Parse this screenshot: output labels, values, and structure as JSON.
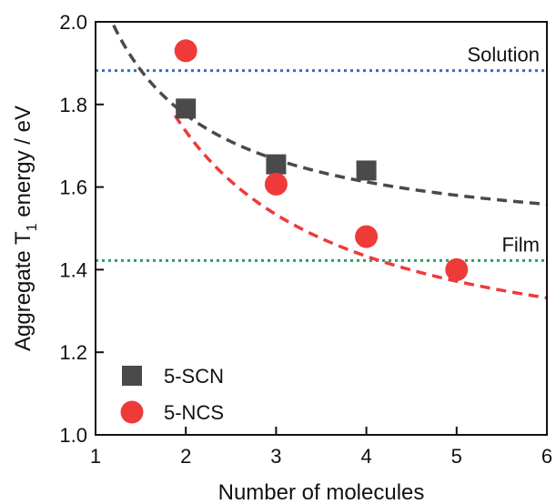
{
  "chart_data": {
    "type": "scatter",
    "xlabel": "Number of molecules",
    "ylabel_parts": {
      "before": "Aggregate T",
      "subscript": "1",
      "after": " energy / eV"
    },
    "xlim": [
      1,
      6
    ],
    "ylim": [
      1.0,
      2.0
    ],
    "xticks": [
      "1",
      "2",
      "3",
      "4",
      "5",
      "6"
    ],
    "yticks": [
      "1.0",
      "1.2",
      "1.4",
      "1.6",
      "1.8",
      "2.0"
    ],
    "grid": false,
    "legend_position": "bottom-left",
    "series": [
      {
        "name": "5-SCN",
        "marker": "square",
        "color": "#4a4a4a",
        "x": [
          2,
          3,
          4
        ],
        "y": [
          1.79,
          1.655,
          1.64
        ],
        "fit": {
          "style": "dashed",
          "color": "#4a4a4a",
          "a": 1.45,
          "b": 0.65,
          "x_from": 1.2,
          "x_to": 6
        }
      },
      {
        "name": "5-NCS",
        "marker": "circle",
        "color": "#ef3a3a",
        "x": [
          2,
          3,
          4,
          5
        ],
        "y": [
          1.93,
          1.607,
          1.48,
          1.4
        ],
        "fit": {
          "style": "dashed",
          "color": "#ef3a3a",
          "a": 1.13,
          "b": 1.21,
          "x_from": 1.88,
          "x_to": 6
        }
      }
    ],
    "reference_lines": [
      {
        "label": "Solution",
        "y": 1.882,
        "style": "dotted",
        "color": "#2f6fd1"
      },
      {
        "label": "Film",
        "y": 1.422,
        "style": "dotted",
        "color": "#2aa060"
      }
    ]
  }
}
